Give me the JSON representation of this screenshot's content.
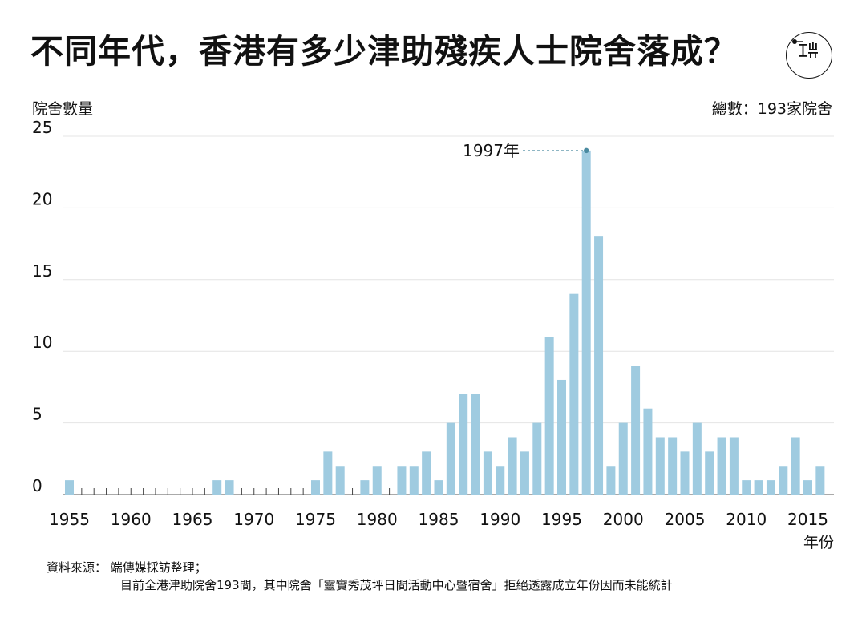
{
  "header": {
    "title": "不同年代，香港有多少津助殘疾人士院舍落成？"
  },
  "chart_data": {
    "type": "bar",
    "ylabel": "院舍數量",
    "xlabel": "年份",
    "total_label": "總數：193家院舍",
    "ylim": [
      0,
      25
    ],
    "yticks": [
      0,
      5,
      10,
      15,
      20,
      25
    ],
    "xticks": [
      1955,
      1960,
      1965,
      1970,
      1975,
      1980,
      1985,
      1990,
      1995,
      2000,
      2005,
      2010,
      2015
    ],
    "x": [
      1955,
      1956,
      1957,
      1958,
      1959,
      1960,
      1961,
      1962,
      1963,
      1964,
      1965,
      1966,
      1967,
      1968,
      1969,
      1970,
      1971,
      1972,
      1973,
      1974,
      1975,
      1976,
      1977,
      1978,
      1979,
      1980,
      1981,
      1982,
      1983,
      1984,
      1985,
      1986,
      1987,
      1988,
      1989,
      1990,
      1991,
      1992,
      1993,
      1994,
      1995,
      1996,
      1997,
      1998,
      1999,
      2000,
      2001,
      2002,
      2003,
      2004,
      2005,
      2006,
      2007,
      2008,
      2009,
      2010,
      2011,
      2012,
      2013,
      2014,
      2015,
      2016
    ],
    "values": [
      1,
      0,
      0,
      0,
      0,
      0,
      0,
      0,
      0,
      0,
      0,
      0,
      1,
      1,
      0,
      0,
      0,
      0,
      0,
      0,
      1,
      3,
      2,
      0,
      1,
      2,
      0,
      2,
      2,
      3,
      1,
      5,
      7,
      7,
      3,
      2,
      4,
      3,
      5,
      11,
      8,
      14,
      24,
      18,
      2,
      5,
      9,
      6,
      4,
      4,
      3,
      5,
      3,
      4,
      4,
      1,
      1,
      1,
      2,
      4,
      1,
      2
    ],
    "annotation": {
      "label": "1997年",
      "year": 1997,
      "value": 24
    },
    "bar_color": "#9fcbe0",
    "annotation_color": "#4a8aa0"
  },
  "footer": {
    "source": "資料來源： 端傳媒採訪整理；",
    "note": "目前全港津助院舍193間，其中院舍「靈實秀茂坪日間活動中心暨宿舍」拒絕透露成立年份因而未能統計"
  }
}
